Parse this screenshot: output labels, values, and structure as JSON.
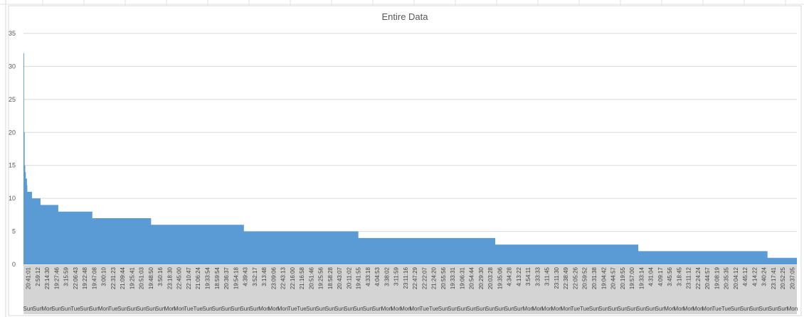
{
  "chart_data": {
    "type": "area",
    "title": "Entire Data",
    "xlabel": "",
    "ylabel": "",
    "ylim": [
      0,
      35
    ],
    "y_ticks": [
      0,
      5,
      10,
      15,
      20,
      25,
      30,
      35
    ],
    "grid": true,
    "legend": "none",
    "color": "#5b9bd5",
    "steps": [
      {
        "from": 0.0,
        "to": 0.0008,
        "value": 32
      },
      {
        "from": 0.0008,
        "to": 0.0015,
        "value": 20
      },
      {
        "from": 0.0015,
        "to": 0.0023,
        "value": 15
      },
      {
        "from": 0.0023,
        "to": 0.003,
        "value": 14
      },
      {
        "from": 0.003,
        "to": 0.0045,
        "value": 13
      },
      {
        "from": 0.0045,
        "to": 0.005,
        "value": 12
      },
      {
        "from": 0.005,
        "to": 0.011,
        "value": 11
      },
      {
        "from": 0.011,
        "to": 0.022,
        "value": 10
      },
      {
        "from": 0.022,
        "to": 0.045,
        "value": 9
      },
      {
        "from": 0.045,
        "to": 0.089,
        "value": 8
      },
      {
        "from": 0.089,
        "to": 0.165,
        "value": 7
      },
      {
        "from": 0.165,
        "to": 0.285,
        "value": 6
      },
      {
        "from": 0.285,
        "to": 0.433,
        "value": 5
      },
      {
        "from": 0.433,
        "to": 0.61,
        "value": 4
      },
      {
        "from": 0.61,
        "to": 0.795,
        "value": 3
      },
      {
        "from": 0.795,
        "to": 0.962,
        "value": 2
      },
      {
        "from": 0.962,
        "to": 1.0,
        "value": 1
      }
    ],
    "x_time_labels": [
      "20:41:01",
      "2:59:12",
      "23:14:30",
      "19:27:46",
      "3:15:59",
      "22:06:43",
      "19:22:48",
      "19:47:08",
      "3:00:10",
      "22:31:23",
      "21:09:44",
      "19:25:41",
      "20:51:03",
      "19:48:50",
      "3:50:16",
      "23:18:30",
      "22:45:00",
      "22:10:47",
      "21:06:24",
      "19:33:54",
      "18:59:54",
      "20:36:37",
      "19:54:18",
      "4:39:43",
      "3:52:17",
      "3:13:48",
      "23:09:06",
      "22:43:13",
      "22:16:00",
      "21:16:58",
      "20:51:46",
      "19:25:56",
      "18:58:28",
      "20:43:07",
      "20:11:02",
      "19:41:55",
      "4:33:18",
      "4:04:53",
      "3:38:02",
      "3:11:59",
      "23:11:16",
      "22:47:29",
      "22:22:07",
      "21:24:20",
      "20:55:56",
      "19:33:31",
      "19:06:31",
      "20:54:44",
      "20:29:30",
      "20:03:28",
      "19:35:06",
      "4:34:28",
      "4:13:22",
      "3:54:11",
      "3:33:33",
      "3:11:45",
      "23:11:30",
      "22:38:49",
      "22:05:26",
      "20:59:52",
      "20:31:38",
      "19:04:42",
      "20:44:57",
      "20:19:55",
      "19:57:00",
      "19:33:14",
      "4:31:04",
      "4:09:17",
      "3:45:56",
      "3:18:45",
      "23:11:12",
      "22:24:24",
      "20:44:57",
      "19:08:19",
      "20:35:35",
      "20:04:12",
      "4:45:12",
      "4:14:22",
      "3:40:24",
      "23:17:41",
      "20:52:25",
      "20:37:05"
    ],
    "x_day_labels": [
      "Sun",
      "Sun",
      "Mon",
      "Sun",
      "Sun",
      "Tue",
      "Sun",
      "Sun",
      "Mon",
      "Tue",
      "Sun",
      "Sun",
      "Sun",
      "Sun",
      "Sun",
      "Mon",
      "Mon",
      "Tue",
      "Tue",
      "Sun",
      "Sun",
      "Sun",
      "Sun",
      "Sun",
      "Sun",
      "Mon",
      "Mon",
      "Mon",
      "Tue",
      "Tue",
      "Sun",
      "Sun",
      "Sun",
      "Sun",
      "Sun",
      "Sun",
      "Sun",
      "Sun",
      "Mon",
      "Mon",
      "Mon",
      "Mon",
      "Tue",
      "Tue",
      "Sun",
      "Sun",
      "Sun",
      "Sun",
      "Sun",
      "Sun",
      "Sun",
      "Sun",
      "Sun",
      "Mon",
      "Mon",
      "Mon",
      "Mon",
      "Mon",
      "Tue",
      "Tue",
      "Sun",
      "Sun",
      "Sun",
      "Sun",
      "Sun",
      "Sun",
      "Sun",
      "Sun",
      "Mon",
      "Mon",
      "Mon",
      "Mon",
      "Mon",
      "Tue",
      "Tue",
      "Sun",
      "Sun",
      "Sun",
      "Sun",
      "Sun",
      "Sun",
      "Mon"
    ]
  }
}
